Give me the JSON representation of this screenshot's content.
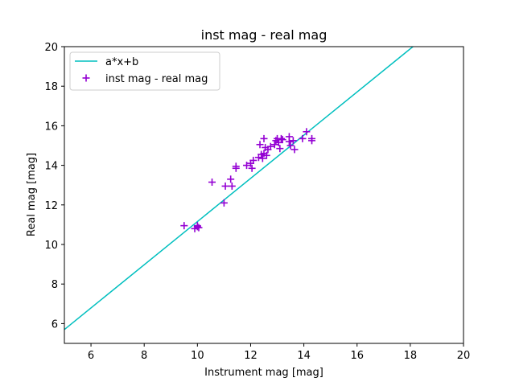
{
  "chart_data": {
    "type": "scatter",
    "title": "inst mag - real mag",
    "xlabel": "Instrument mag [mag]",
    "ylabel": "Real mag [mag]",
    "xlim": [
      5,
      20
    ],
    "ylim": [
      5,
      20
    ],
    "xticks": [
      "6",
      "8",
      "10",
      "12",
      "14",
      "16",
      "18",
      "20"
    ],
    "yticks": [
      "6",
      "8",
      "10",
      "12",
      "14",
      "16",
      "18",
      "20"
    ],
    "grid": false,
    "legend_position": "upper-left",
    "fit_line": {
      "name": "a*x+b",
      "color": "#00bfbf",
      "x": [
        5,
        18.1
      ],
      "y": [
        5.7,
        20.0
      ]
    },
    "series": [
      {
        "name": "inst mag - real mag",
        "color": "#9400d3",
        "marker": "plus",
        "points": [
          [
            9.5,
            10.95
          ],
          [
            9.9,
            10.8
          ],
          [
            10.0,
            10.9
          ],
          [
            10.0,
            10.95
          ],
          [
            10.05,
            10.85
          ],
          [
            10.55,
            13.15
          ],
          [
            11.0,
            12.1
          ],
          [
            11.05,
            12.95
          ],
          [
            11.25,
            13.3
          ],
          [
            11.3,
            12.95
          ],
          [
            11.45,
            13.85
          ],
          [
            11.45,
            13.95
          ],
          [
            11.85,
            14.0
          ],
          [
            12.0,
            14.1
          ],
          [
            12.05,
            13.85
          ],
          [
            12.1,
            14.25
          ],
          [
            12.3,
            14.4
          ],
          [
            12.35,
            15.05
          ],
          [
            12.4,
            14.55
          ],
          [
            12.45,
            14.35
          ],
          [
            12.5,
            15.35
          ],
          [
            12.5,
            14.6
          ],
          [
            12.55,
            14.9
          ],
          [
            12.6,
            14.5
          ],
          [
            12.65,
            14.8
          ],
          [
            12.75,
            14.95
          ],
          [
            12.9,
            15.05
          ],
          [
            12.95,
            15.25
          ],
          [
            13.0,
            15.35
          ],
          [
            13.05,
            15.15
          ],
          [
            13.1,
            14.85
          ],
          [
            13.15,
            15.35
          ],
          [
            13.2,
            15.3
          ],
          [
            13.45,
            15.45
          ],
          [
            13.45,
            15.2
          ],
          [
            13.5,
            15.0
          ],
          [
            13.6,
            15.25
          ],
          [
            13.65,
            14.8
          ],
          [
            13.95,
            15.35
          ],
          [
            14.1,
            15.7
          ],
          [
            14.3,
            15.25
          ],
          [
            14.3,
            15.35
          ]
        ]
      }
    ]
  }
}
